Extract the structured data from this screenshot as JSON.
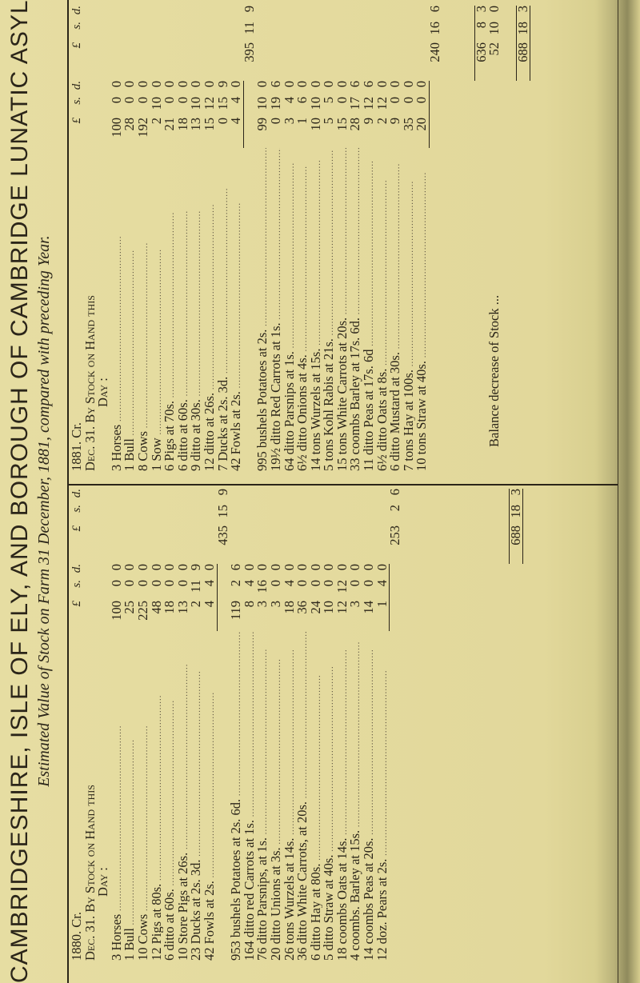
{
  "title": "CAMBRIDGESHIRE, ISLE OF ELY, AND BOROUGH OF CAMBRIDGE LUNATIC ASYLUM.",
  "subtitle": "Estimated Value of Stock on Farm 31 December, 1881, compared with preceding Year.",
  "currency_headers": [
    "£",
    "s.",
    "d.",
    "£",
    "s.",
    "d."
  ],
  "colors": {
    "paper": "#e2d89b",
    "ink": "#2b2519"
  },
  "columns": [
    {
      "id": "1880",
      "year_line": "1880.   Cr.",
      "date_line": "Dec. 31.  By Stock on Hand this",
      "day_line": "Day :",
      "livestock": [
        {
          "label": "3 Horses",
          "l": "100",
          "s": "0",
          "d": "0"
        },
        {
          "label": "1 Bull",
          "l": "25",
          "s": "0",
          "d": "0"
        },
        {
          "label": "10 Cows",
          "l": "225",
          "s": "0",
          "d": "0"
        },
        {
          "label": "12 Pigs at 80s.",
          "l": "48",
          "s": "0",
          "d": "0"
        },
        {
          "label": "6 ditto at 60s.",
          "l": "18",
          "s": "0",
          "d": "0"
        },
        {
          "label": "10 Store Pigs at 26s.",
          "l": "13",
          "s": "0",
          "d": "0"
        },
        {
          "label": "23 Ducks at 2s. 3d.",
          "l": "2",
          "s": "11",
          "d": "9"
        },
        {
          "label": "42 Fowls at 2s.",
          "l": "4",
          "s": "4",
          "d": "0"
        }
      ],
      "livestock_total": {
        "l": "435",
        "s": "15",
        "d": "9"
      },
      "produce": [
        {
          "label": "953 bushels Potatoes at 2s. 6d.",
          "l": "119",
          "s": "2",
          "d": "6"
        },
        {
          "label": "164 ditto red Carrots at 1s.",
          "l": "8",
          "s": "4",
          "d": "0"
        },
        {
          "label": "76 ditto Parsnips, at 1s.",
          "l": "3",
          "s": "16",
          "d": "0"
        },
        {
          "label": "20 ditto Unions at 3s.",
          "l": "3",
          "s": "0",
          "d": "0"
        },
        {
          "label": "26 tons Wurzels at 14s.",
          "l": "18",
          "s": "4",
          "d": "0"
        },
        {
          "label": "36 ditto White Carrots, at 20s.",
          "l": "36",
          "s": "0",
          "d": "0"
        },
        {
          "label": "6 ditto Hay at 80s.",
          "l": "24",
          "s": "0",
          "d": "0"
        },
        {
          "label": "5 ditto Straw at 40s.",
          "l": "10",
          "s": "0",
          "d": "0"
        },
        {
          "label": "18 coombs Oats at 14s.",
          "l": "12",
          "s": "12",
          "d": "0"
        },
        {
          "label": "4 coombs. Barley at 15s.",
          "l": "3",
          "s": "0",
          "d": "0"
        },
        {
          "label": "14 coombs Peas at 20s.",
          "l": "14",
          "s": "0",
          "d": "0"
        },
        {
          "label": "12 doz. Pears at 2s.",
          "l": "1",
          "s": "4",
          "d": "0"
        }
      ],
      "produce_total": {
        "l": "253",
        "s": "2",
        "d": "6"
      },
      "grand_total": {
        "l": "688",
        "s": "18",
        "d": "3"
      }
    },
    {
      "id": "1881",
      "year_line": "1881.   Cr.",
      "date_line": "Dec. 31.  By Stock on Hand this",
      "day_line": "Day :",
      "livestock": [
        {
          "label": "3 Horses",
          "l": "100",
          "s": "0",
          "d": "0"
        },
        {
          "label": "1 Bull",
          "l": "28",
          "s": "0",
          "d": "0"
        },
        {
          "label": "8 Cows",
          "l": "192",
          "s": "0",
          "d": "0"
        },
        {
          "label": "1 Sow",
          "l": "2",
          "s": "10",
          "d": "0"
        },
        {
          "label": "6 Pigs at 70s.",
          "l": "21",
          "s": "0",
          "d": "0"
        },
        {
          "label": "6 ditto at 60s.",
          "l": "18",
          "s": "0",
          "d": "0"
        },
        {
          "label": "9 ditto at 30s.",
          "l": "13",
          "s": "10",
          "d": "0"
        },
        {
          "label": "12 ditto at 26s.",
          "l": "15",
          "s": "12",
          "d": "0"
        },
        {
          "label": "7 Ducks at 2s. 3d.",
          "l": "0",
          "s": "15",
          "d": "9"
        },
        {
          "label": "42 Fowls at 2s.",
          "l": "4",
          "s": "4",
          "d": "0"
        }
      ],
      "livestock_total": {
        "l": "395",
        "s": "11",
        "d": "9"
      },
      "produce": [
        {
          "label": "995 bushels Potatoes at 2s.",
          "l": "99",
          "s": "10",
          "d": "0"
        },
        {
          "label": "19½ ditto Red Carrots at 1s.",
          "l": "0",
          "s": "19",
          "d": "6"
        },
        {
          "label": "64 ditto Parsnips at 1s.",
          "l": "3",
          "s": "4",
          "d": "0"
        },
        {
          "label": "6½ ditto Onions at 4s.",
          "l": "1",
          "s": "6",
          "d": "0"
        },
        {
          "label": "14 tons Wurzels at 15s.",
          "l": "10",
          "s": "10",
          "d": "0"
        },
        {
          "label": "5 tons Kohl Rabis at 21s.",
          "l": "5",
          "s": "5",
          "d": "0"
        },
        {
          "label": "15 tons White Carrots at 20s.",
          "l": "15",
          "s": "0",
          "d": "0"
        },
        {
          "label": "33 coombs Barley at 17s. 6d.",
          "l": "28",
          "s": "17",
          "d": "6"
        },
        {
          "label": "11 ditto Peas at 17s. 6d",
          "l": "9",
          "s": "12",
          "d": "6"
        },
        {
          "label": "6½ ditto Oats at 8s.",
          "l": "2",
          "s": "12",
          "d": "0"
        },
        {
          "label": "6 ditto Mustard at 30s.",
          "l": "9",
          "s": "0",
          "d": "0"
        },
        {
          "label": "7 tons Hay at 100s.",
          "l": "35",
          "s": "0",
          "d": "0"
        },
        {
          "label": "10 tons Straw at 40s.",
          "l": "20",
          "s": "0",
          "d": "0"
        }
      ],
      "produce_total": {
        "l": "240",
        "s": "16",
        "d": "6"
      },
      "sum_total": {
        "l": "636",
        "s": "8",
        "d": "3"
      },
      "balance_label": "Balance decrease of Stock ...",
      "balance": {
        "l": "52",
        "s": "10",
        "d": "0"
      },
      "grand_total": {
        "l": "688",
        "s": "18",
        "d": "3"
      }
    }
  ]
}
